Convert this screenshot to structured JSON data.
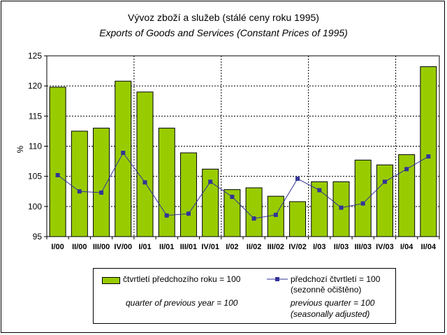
{
  "chart_data": {
    "type": "bar",
    "title": "Vývoz zboží a služeb (stálé ceny roku 1995)",
    "subtitle": "Exports of Goods and Services (Constant Prices of 1995)",
    "xlabel": "",
    "ylabel": "%",
    "ylim": [
      95,
      125
    ],
    "yticks": [
      "95",
      "100",
      "105",
      "110",
      "115",
      "120",
      "125"
    ],
    "grid": true,
    "legend_position": "bottom",
    "categories": [
      "I/00",
      "II/00",
      "III/00",
      "IV/00",
      "I/01",
      "II/01",
      "III/01",
      "IV/01",
      "I/02",
      "II/02",
      "III/02",
      "IV/02",
      "I/03",
      "II/03",
      "III/03",
      "IV/03",
      "I/04",
      "II/04"
    ],
    "series": [
      {
        "name": "čtvrtletí předchozího roku = 100",
        "name_en": "quarter of previous year = 100",
        "kind": "bar",
        "color": "#99cc00",
        "values": [
          119.8,
          112.5,
          113.0,
          120.8,
          119.0,
          113.0,
          108.9,
          106.2,
          102.8,
          103.1,
          101.7,
          100.8,
          104.1,
          104.1,
          107.7,
          106.9,
          108.6,
          123.2
        ]
      },
      {
        "name": "předchozí čtvrtletí = 100",
        "name_line2": "(sezonně očištěno)",
        "name_en": "previous quarter = 100",
        "name_en_line2": "(seasonally adjusted)",
        "kind": "line",
        "color": "#333399",
        "values": [
          105.2,
          102.5,
          102.3,
          108.9,
          104.0,
          98.5,
          98.8,
          104.1,
          101.6,
          98.0,
          98.6,
          104.6,
          102.7,
          99.8,
          100.5,
          104.1,
          106.2,
          108.3
        ]
      }
    ]
  }
}
